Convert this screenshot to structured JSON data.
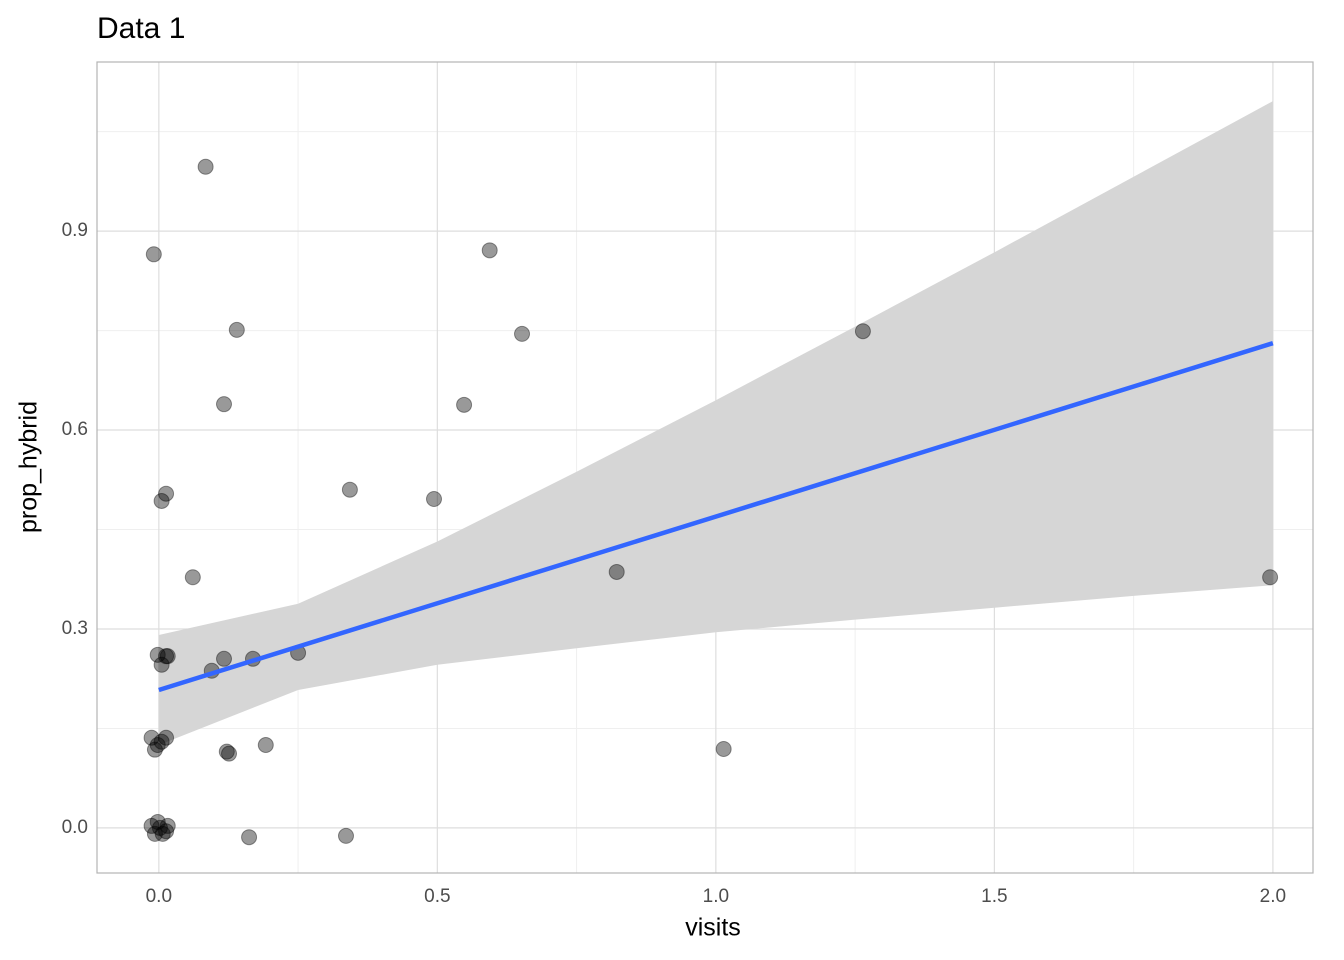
{
  "chart_data": {
    "type": "scatter",
    "title": "Data 1",
    "x_label": "visits",
    "y_label": "prop_hybrid",
    "x": [
      0.084,
      -0.009,
      0.594,
      0.14,
      0.652,
      1.264,
      0.117,
      0.548,
      0.343,
      0.494,
      0.013,
      0.005,
      0.061,
      0.822,
      1.995,
      -0.002,
      0.013,
      0.016,
      0.005,
      0.117,
      0.169,
      0.095,
      0.25,
      -0.013,
      0.013,
      -0.002,
      0.005,
      -0.007,
      0.122,
      0.126,
      0.192,
      1.014,
      -0.013,
      0.016,
      0.002,
      -0.007,
      0.007,
      0.013,
      0.162,
      0.336,
      -0.002
    ],
    "y": [
      0.997,
      0.865,
      0.871,
      0.751,
      0.745,
      0.749,
      0.639,
      0.638,
      0.51,
      0.496,
      0.504,
      0.493,
      0.378,
      0.386,
      0.378,
      0.261,
      0.259,
      0.259,
      0.246,
      0.255,
      0.255,
      0.237,
      0.264,
      0.136,
      0.136,
      0.125,
      0.13,
      0.118,
      0.115,
      0.112,
      0.125,
      0.119,
      0.003,
      0.003,
      0,
      -0.009,
      -0.009,
      -0.005,
      -0.014,
      -0.012,
      0.009
    ],
    "point_color": "#000000",
    "point_opacity": 0.4,
    "fit": {
      "color": "#3366ff",
      "x": [
        0,
        2
      ],
      "y": [
        0.208,
        0.731
      ]
    },
    "band": {
      "color": "#d6d6d6",
      "x": [
        0,
        0.25,
        0.5,
        0.75,
        1,
        1.25,
        1.5,
        1.75,
        2
      ],
      "lower": [
        0.125,
        0.208,
        0.246,
        0.271,
        0.295,
        0.314,
        0.332,
        0.35,
        0.366
      ],
      "upper": [
        0.291,
        0.338,
        0.432,
        0.537,
        0.645,
        0.756,
        0.868,
        0.982,
        1.096
      ]
    },
    "xlim": [
      -0.111,
      2.072
    ],
    "ylim": [
      -0.068,
      1.155
    ],
    "xticks": [
      {
        "value": 0,
        "label": "0.0"
      },
      {
        "value": 0.5,
        "label": "0.5"
      },
      {
        "value": 1,
        "label": "1.0"
      },
      {
        "value": 1.5,
        "label": "1.5"
      },
      {
        "value": 2,
        "label": "2.0"
      }
    ],
    "yticks": [
      {
        "value": 0,
        "label": "0.0"
      },
      {
        "value": 0.3,
        "label": "0.3"
      },
      {
        "value": 0.6,
        "label": "0.6"
      },
      {
        "value": 0.9,
        "label": "0.9"
      }
    ],
    "xminor": [
      0.25,
      0.75,
      1.25,
      1.75
    ],
    "yminor": [
      0.15,
      0.45,
      0.75,
      1.05
    ],
    "grid": true
  }
}
